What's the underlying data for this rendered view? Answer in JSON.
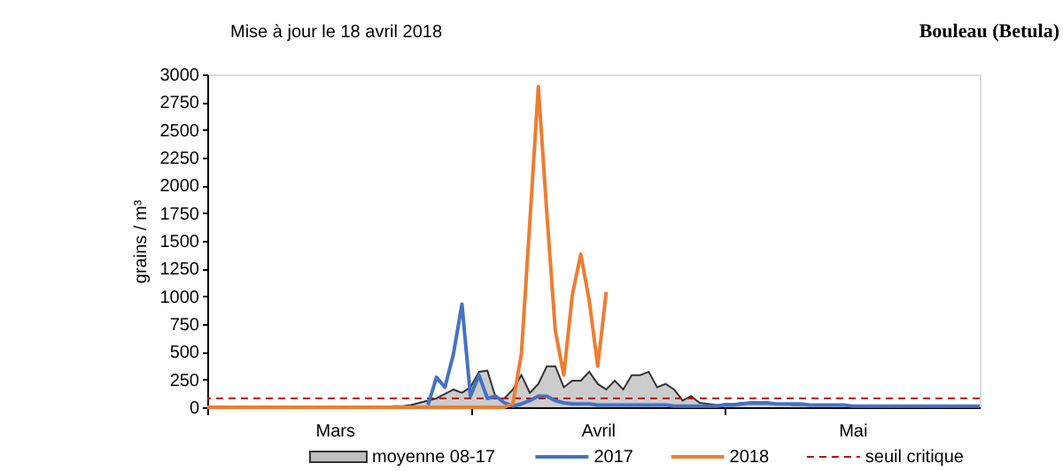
{
  "chart_data": {
    "type": "line",
    "title": "Bouleau (Betula)",
    "subtitle": "Mise à jour le 18 avril 2018",
    "ylabel": "grains / m³",
    "categories": [
      null,
      null,
      null,
      null,
      null,
      null,
      null,
      null,
      null,
      null,
      null,
      null,
      null,
      null,
      null,
      "Mars",
      null,
      null,
      null,
      null,
      null,
      null,
      null,
      null,
      null,
      null,
      null,
      null,
      null,
      null,
      null,
      null,
      null,
      null,
      null,
      null,
      null,
      null,
      null,
      null,
      null,
      null,
      null,
      null,
      null,
      null,
      "Avril",
      null,
      null,
      null,
      null,
      null,
      null,
      null,
      null,
      null,
      null,
      null,
      null,
      null,
      null,
      null,
      null,
      null,
      null,
      null,
      null,
      null,
      null,
      null,
      null,
      null,
      null,
      null,
      null,
      null,
      "Mai",
      null,
      null,
      null,
      null,
      null,
      null,
      null,
      null,
      null,
      null,
      null,
      null,
      null,
      null,
      null
    ],
    "ylim": [
      0,
      3000
    ],
    "yticks": [
      0,
      250,
      500,
      750,
      1000,
      1250,
      1500,
      1750,
      2000,
      2250,
      2500,
      2750,
      3000
    ],
    "grid": false,
    "legend": "bottom",
    "line_style": "solid",
    "marker": "none",
    "series": [
      {
        "name": "moyenne 08-17",
        "type": "area",
        "color": "#bfbfbf",
        "values": [
          0,
          0,
          0,
          0,
          0,
          0,
          0,
          0,
          0,
          0,
          0,
          0,
          0,
          0,
          0,
          0,
          0,
          0,
          0,
          0,
          0,
          0,
          10,
          10,
          20,
          40,
          60,
          80,
          120,
          160,
          130,
          180,
          320,
          330,
          80,
          80,
          160,
          290,
          130,
          210,
          370,
          370,
          180,
          240,
          240,
          320,
          210,
          160,
          240,
          160,
          290,
          290,
          320,
          180,
          210,
          160,
          60,
          100,
          40,
          30,
          20,
          30,
          30,
          40,
          30,
          30,
          30,
          30,
          30,
          20,
          20,
          20,
          20,
          20,
          20,
          20,
          10,
          10,
          10,
          10,
          10,
          10,
          10,
          10,
          10,
          10,
          10,
          10,
          10,
          10,
          10,
          10
        ]
      },
      {
        "name": "2017",
        "type": "line",
        "color": "#4472c4",
        "values": [
          null,
          null,
          null,
          null,
          null,
          null,
          null,
          null,
          null,
          null,
          null,
          null,
          null,
          null,
          null,
          null,
          null,
          null,
          null,
          null,
          null,
          null,
          null,
          null,
          null,
          null,
          20,
          270,
          180,
          480,
          930,
          100,
          290,
          80,
          100,
          40,
          10,
          30,
          60,
          100,
          100,
          60,
          40,
          30,
          30,
          30,
          20,
          20,
          20,
          20,
          20,
          20,
          20,
          20,
          20,
          10,
          10,
          10,
          10,
          10,
          10,
          20,
          20,
          30,
          40,
          40,
          40,
          30,
          30,
          30,
          30,
          20,
          20,
          20,
          20,
          20,
          10,
          10,
          10,
          10,
          10,
          10,
          10,
          10,
          10,
          10,
          10,
          10,
          10,
          10,
          10,
          10
        ]
      },
      {
        "name": "2018",
        "type": "line",
        "color": "#ed7d31",
        "values": [
          0,
          0,
          0,
          0,
          0,
          0,
          0,
          0,
          0,
          0,
          0,
          0,
          0,
          0,
          0,
          0,
          0,
          0,
          0,
          0,
          0,
          0,
          0,
          0,
          0,
          0,
          0,
          0,
          0,
          0,
          0,
          0,
          0,
          0,
          0,
          0,
          30,
          480,
          1670,
          2890,
          1750,
          690,
          290,
          1010,
          1380,
          960,
          370,
          1040,
          null,
          null,
          null,
          null,
          null,
          null,
          null,
          null,
          null,
          null,
          null,
          null,
          null,
          null,
          null,
          null,
          null,
          null,
          null,
          null,
          null,
          null,
          null,
          null,
          null,
          null,
          null,
          null,
          null,
          null,
          null,
          null,
          null,
          null,
          null,
          null,
          null,
          null,
          null,
          null,
          null,
          null,
          null,
          null
        ]
      }
    ],
    "ref_lines": [
      {
        "axis": "y",
        "value": 80,
        "label": "seuil critique",
        "color": "#c00000",
        "line_style": "dashed"
      }
    ]
  }
}
